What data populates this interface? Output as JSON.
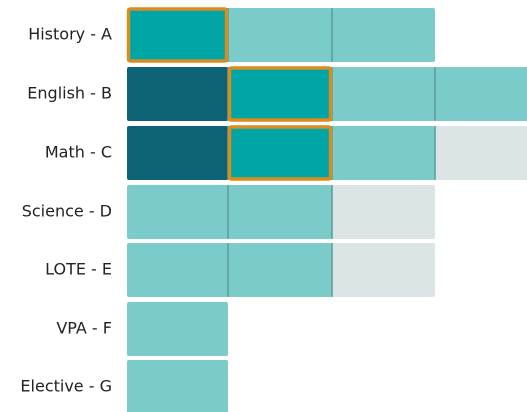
{
  "rows": [
    {
      "label": "History - A"
    },
    {
      "label": "English - B"
    },
    {
      "label": "Math - C"
    },
    {
      "label": "Science - D"
    },
    {
      "label": "LOTE - E"
    },
    {
      "label": "VPA - F"
    },
    {
      "label": "Elective - G"
    }
  ]
}
